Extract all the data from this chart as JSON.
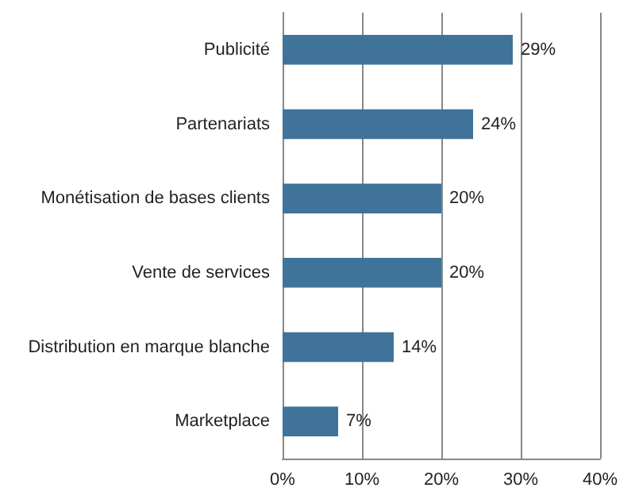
{
  "chart_data": {
    "type": "bar",
    "orientation": "horizontal",
    "categories": [
      "Publicité",
      "Partenariats",
      "Monétisation de bases clients",
      "Vente de services",
      "Distribution en marque blanche",
      "Marketplace"
    ],
    "values": [
      29,
      24,
      20,
      20,
      14,
      7
    ],
    "value_labels": [
      "29%",
      "24%",
      "20%",
      "20%",
      "14%",
      "7%"
    ],
    "color": "#3f7399",
    "xlim": [
      0,
      40
    ],
    "xticks": [
      {
        "value": 0,
        "label": "0%"
      },
      {
        "value": 10,
        "label": "10%"
      },
      {
        "value": 20,
        "label": "20%"
      },
      {
        "value": 30,
        "label": "30%"
      },
      {
        "value": 40,
        "label": "40%"
      }
    ],
    "grid": "x"
  }
}
